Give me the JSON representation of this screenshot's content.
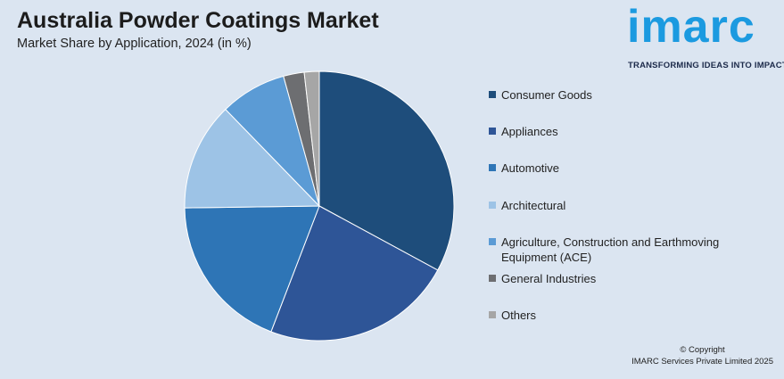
{
  "header": {
    "title": "Australia Powder Coatings Market",
    "subtitle": "Market Share by Application, 2024 (in %)"
  },
  "logo": {
    "word": "imarc",
    "tagline": "TRANSFORMING IDEAS INTO IMPACT"
  },
  "footer": {
    "copyright_line1": "© Copyright",
    "copyright_line2": "IMARC Services Private Limited 2025"
  },
  "chart_data": {
    "type": "pie",
    "title": "Australia Powder Coatings Market",
    "subtitle": "Market Share by Application, 2024 (in %)",
    "legend_position": "right",
    "categories": [
      "Consumer Goods",
      "Appliances",
      "Automotive",
      "Architectural",
      "Agriculture, Construction and Earthmoving Equipment (ACE)",
      "General Industries",
      "Others"
    ],
    "values": [
      33,
      23,
      19,
      13,
      8,
      2.5,
      1.8
    ],
    "colors": [
      "#1e4d7b",
      "#2e5597",
      "#2e75b6",
      "#9dc3e6",
      "#5b9bd5",
      "#6d6e71",
      "#a6a6a6"
    ]
  }
}
